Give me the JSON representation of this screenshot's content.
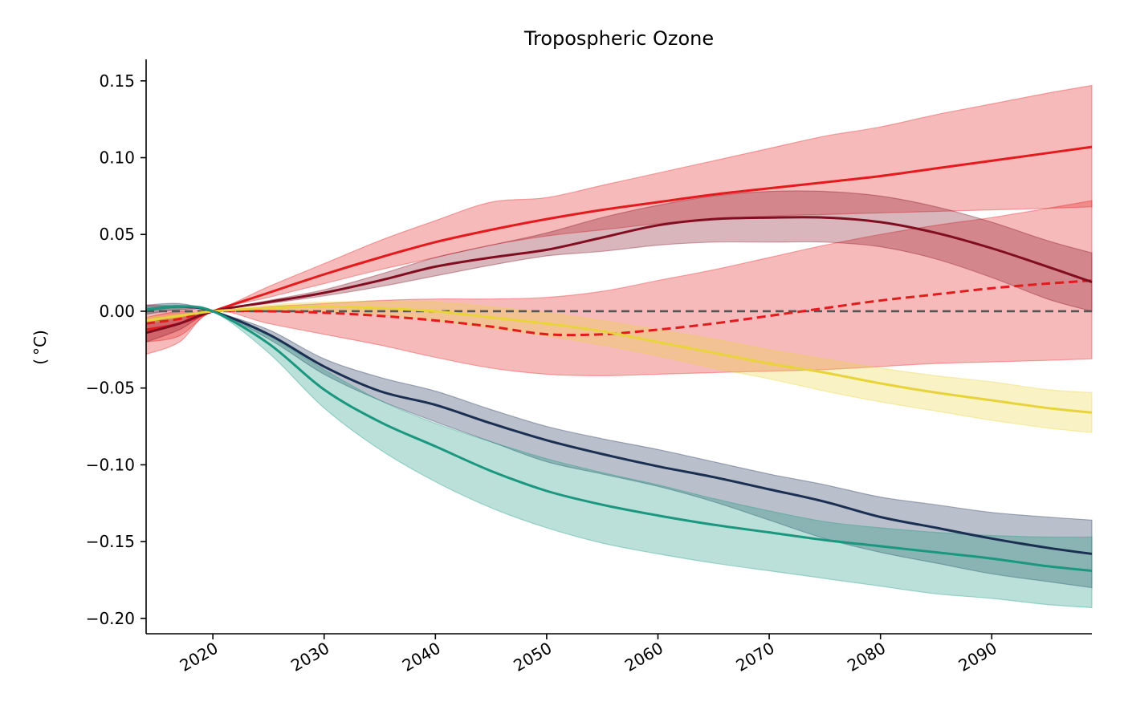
{
  "chart_data": {
    "type": "line",
    "title": "Tropospheric Ozone",
    "xlabel": "",
    "ylabel": "( °C)",
    "xlim": [
      2014,
      2099
    ],
    "ylim": [
      -0.21,
      0.164
    ],
    "xticks": [
      "2020",
      "2030",
      "2040",
      "2050",
      "2060",
      "2070",
      "2080",
      "2090"
    ],
    "yticks": [
      "0.15",
      "0.10",
      "0.05",
      "0.00",
      "−0.05",
      "−0.10",
      "−0.15",
      "−0.20"
    ],
    "x": [
      2014,
      2017,
      2020,
      2025,
      2030,
      2035,
      2040,
      2045,
      2050,
      2055,
      2060,
      2065,
      2070,
      2075,
      2080,
      2085,
      2090,
      2095,
      2099
    ],
    "reference_line": {
      "y": 0,
      "color": "#555555",
      "style": "dashed"
    },
    "series": [
      {
        "color": "#e41a1c",
        "style": "solid",
        "values": [
          -0.012,
          -0.008,
          0,
          0.012,
          0.024,
          0.035,
          0.045,
          0.053,
          0.06,
          0.066,
          0.071,
          0.076,
          0.08,
          0.084,
          0.088,
          0.093,
          0.098,
          0.103,
          0.107
        ],
        "upper": [
          -0.004,
          0.0,
          0,
          0.016,
          0.031,
          0.046,
          0.059,
          0.071,
          0.074,
          0.082,
          0.09,
          0.098,
          0.106,
          0.114,
          0.12,
          0.128,
          0.135,
          0.142,
          0.147
        ],
        "lower": [
          -0.02,
          -0.016,
          0,
          0.009,
          0.018,
          0.027,
          0.035,
          0.043,
          0.049,
          0.053,
          0.057,
          0.06,
          0.062,
          0.063,
          0.064,
          0.065,
          0.066,
          0.067,
          0.068
        ]
      },
      {
        "color": "#e41a1c",
        "style": "dashed",
        "values": [
          -0.008,
          -0.005,
          0,
          0,
          -0.001,
          -0.003,
          -0.006,
          -0.01,
          -0.015,
          -0.015,
          -0.012,
          -0.008,
          -0.003,
          0.002,
          0.007,
          0.011,
          0.015,
          0.018,
          0.02
        ],
        "upper": [
          0.004,
          0.003,
          0,
          0.003,
          0.005,
          0.007,
          0.008,
          0.008,
          0.009,
          0.013,
          0.02,
          0.027,
          0.035,
          0.043,
          0.05,
          0.056,
          0.061,
          0.067,
          0.072
        ],
        "lower": [
          -0.028,
          -0.02,
          0,
          -0.008,
          -0.015,
          -0.022,
          -0.03,
          -0.037,
          -0.041,
          -0.042,
          -0.041,
          -0.04,
          -0.039,
          -0.038,
          -0.036,
          -0.034,
          -0.033,
          -0.032,
          -0.031
        ]
      },
      {
        "color": "#800d20",
        "style": "solid",
        "values": [
          -0.014,
          -0.008,
          0,
          0.006,
          0.012,
          0.02,
          0.029,
          0.035,
          0.04,
          0.048,
          0.056,
          0.06,
          0.061,
          0.061,
          0.058,
          0.051,
          0.041,
          0.029,
          0.019
        ],
        "upper": [
          -0.008,
          -0.003,
          0,
          0.007,
          0.014,
          0.024,
          0.035,
          0.043,
          0.051,
          0.061,
          0.069,
          0.075,
          0.078,
          0.078,
          0.075,
          0.068,
          0.058,
          0.046,
          0.038
        ],
        "lower": [
          -0.02,
          -0.012,
          0,
          0.005,
          0.01,
          0.016,
          0.023,
          0.03,
          0.036,
          0.039,
          0.043,
          0.045,
          0.045,
          0.045,
          0.042,
          0.034,
          0.022,
          0.008,
          0.0
        ]
      },
      {
        "color": "#e8d43a",
        "style": "solid",
        "values": [
          -0.006,
          -0.003,
          0,
          0.002,
          0.003,
          0.002,
          0.0,
          -0.004,
          -0.008,
          -0.013,
          -0.02,
          -0.027,
          -0.034,
          -0.04,
          -0.047,
          -0.053,
          -0.058,
          -0.063,
          -0.066
        ],
        "upper": [
          -0.004,
          -0.002,
          0,
          0.004,
          0.006,
          0.006,
          0.006,
          0.003,
          -0.001,
          -0.006,
          -0.012,
          -0.018,
          -0.025,
          -0.031,
          -0.037,
          -0.042,
          -0.046,
          -0.051,
          -0.053
        ],
        "lower": [
          -0.008,
          -0.004,
          0,
          0.0,
          0.0,
          -0.002,
          -0.006,
          -0.011,
          -0.016,
          -0.022,
          -0.029,
          -0.037,
          -0.044,
          -0.052,
          -0.059,
          -0.065,
          -0.071,
          -0.076,
          -0.079
        ]
      },
      {
        "color": "#1a2f52",
        "style": "solid",
        "values": [
          0.001,
          0.003,
          0,
          -0.015,
          -0.036,
          -0.052,
          -0.061,
          -0.073,
          -0.084,
          -0.093,
          -0.101,
          -0.108,
          -0.116,
          -0.124,
          -0.134,
          -0.141,
          -0.148,
          -0.154,
          -0.158
        ],
        "upper": [
          0.004,
          0.005,
          0,
          -0.012,
          -0.031,
          -0.043,
          -0.052,
          -0.064,
          -0.075,
          -0.083,
          -0.09,
          -0.098,
          -0.106,
          -0.113,
          -0.121,
          -0.126,
          -0.131,
          -0.134,
          -0.136
        ],
        "lower": [
          -0.002,
          0.001,
          0,
          -0.018,
          -0.041,
          -0.058,
          -0.072,
          -0.085,
          -0.098,
          -0.106,
          -0.114,
          -0.124,
          -0.136,
          -0.148,
          -0.157,
          -0.164,
          -0.171,
          -0.176,
          -0.18
        ]
      },
      {
        "color": "#1b9780",
        "style": "solid",
        "values": [
          0.001,
          0.003,
          0,
          -0.021,
          -0.051,
          -0.072,
          -0.088,
          -0.104,
          -0.117,
          -0.126,
          -0.133,
          -0.139,
          -0.144,
          -0.149,
          -0.153,
          -0.157,
          -0.161,
          -0.166,
          -0.169
        ],
        "upper": [
          0.003,
          0.004,
          0,
          -0.016,
          -0.038,
          -0.058,
          -0.073,
          -0.085,
          -0.096,
          -0.105,
          -0.113,
          -0.122,
          -0.13,
          -0.137,
          -0.141,
          -0.144,
          -0.146,
          -0.147,
          -0.147
        ],
        "lower": [
          0.0,
          0.002,
          0,
          -0.027,
          -0.063,
          -0.09,
          -0.111,
          -0.128,
          -0.141,
          -0.151,
          -0.158,
          -0.164,
          -0.169,
          -0.174,
          -0.179,
          -0.184,
          -0.187,
          -0.191,
          -0.193
        ]
      }
    ]
  }
}
